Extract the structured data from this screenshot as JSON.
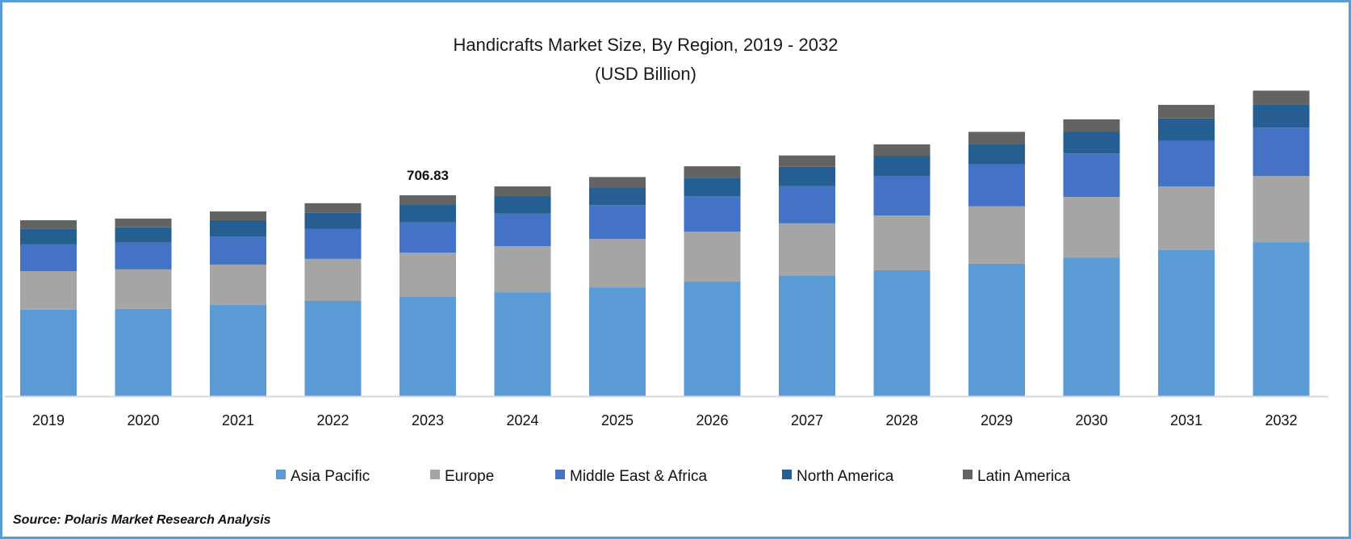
{
  "chart_data": {
    "type": "bar",
    "stacked": true,
    "title": "Handicrafts Market Size, By Region, 2019 - 2032",
    "subtitle": "(USD Billion)",
    "xlabel": "",
    "ylabel": "",
    "categories": [
      "2019",
      "2020",
      "2021",
      "2022",
      "2023",
      "2024",
      "2025",
      "2026",
      "2027",
      "2028",
      "2029",
      "2030",
      "2031",
      "2032"
    ],
    "series": [
      {
        "name": "Asia Pacific",
        "color": "#5b9bd5",
        "values": [
          304,
          307,
          321,
          335,
          349.2,
          366,
          383,
          403,
          423,
          443,
          466,
          488,
          514,
          542
        ]
      },
      {
        "name": "Europe",
        "color": "#a5a5a5",
        "values": [
          136,
          139,
          142,
          148,
          156.1,
          162,
          170,
          176,
          185,
          193,
          202,
          213,
          224,
          233
        ]
      },
      {
        "name": "Middle East & Africa",
        "color": "#4472c4",
        "values": [
          94,
          94,
          99,
          105,
          107.9,
          114,
          119,
          125,
          131,
          139,
          148,
          153,
          162,
          170
        ]
      },
      {
        "name": "North America",
        "color": "#255e91",
        "values": [
          54,
          54,
          57,
          57,
          59.6,
          62,
          62,
          65,
          68,
          71,
          71,
          77,
          77,
          82
        ]
      },
      {
        "name": "Latin America",
        "color": "#636363",
        "values": [
          31,
          31,
          31,
          34,
          34.0,
          34,
          37,
          40,
          40,
          40,
          43,
          43,
          48,
          48
        ]
      }
    ],
    "annotations": [
      {
        "category": "2023",
        "text": "706.83"
      }
    ],
    "ylim": [
      0,
      1100
    ],
    "grid": false,
    "legend": "bottom"
  },
  "source": "Source: Polaris Market Research Analysis",
  "border_color": "#5b9bd5"
}
